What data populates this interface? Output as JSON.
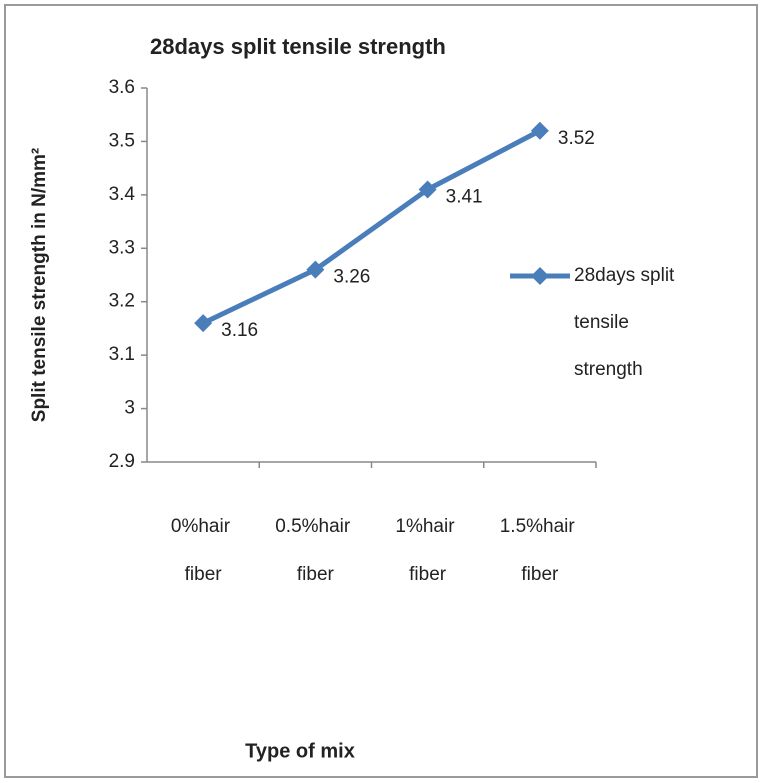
{
  "chart_data": {
    "type": "line",
    "title": "28days split tensile strength",
    "y_label": "Split tensile strength in N/mm²",
    "x_label": "Type of mix",
    "categories": [
      "0%hair fiber",
      "0.5%hair fiber",
      "1%hair fiber",
      "1.5%hair fiber"
    ],
    "series": [
      {
        "name": "28days split tensile strength",
        "color": "#4a7ebb",
        "values": [
          3.16,
          3.26,
          3.41,
          3.52
        ]
      }
    ],
    "ylim": [
      2.9,
      3.6
    ],
    "yticks": [
      2.9,
      3,
      3.1,
      3.2,
      3.3,
      3.4,
      3.5,
      3.6
    ],
    "data_labels": true,
    "legend": "right"
  }
}
